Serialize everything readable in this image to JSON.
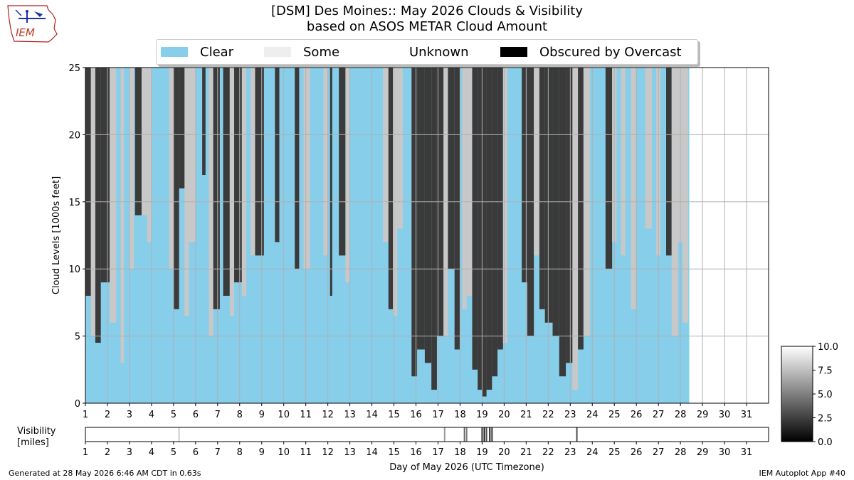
{
  "header": {
    "title_line1": "[DSM] Des Moines:: May 2026 Clouds & Visibility",
    "title_line2": "based on ASOS METAR Cloud Amount"
  },
  "logo": {
    "text": "IEM",
    "icon": "iem-iowa-weather-logo-icon"
  },
  "legend": [
    {
      "label": "Clear",
      "color": "#87ceeb"
    },
    {
      "label": "Some",
      "color": "#eeeeee"
    },
    {
      "label": "Unknown",
      "color": "#ffffff"
    },
    {
      "label": "Obscured by Overcast",
      "color": "#000000"
    }
  ],
  "colors": {
    "clear": "#87ceeb",
    "few": "#c8c8c8",
    "overcast": "#3a3a3a",
    "grid": "#b0b0b0"
  },
  "colorbar": {
    "ticks": [
      "10.0",
      "7.5",
      "5.0",
      "2.5",
      "0.0"
    ],
    "range": [
      0,
      10
    ]
  },
  "chart_data": [
    {
      "type": "heatmap",
      "title": "[DSM] Des Moines:: May 2026 Clouds & Visibility",
      "ylabel": "Cloud Levels [1000s feet]",
      "xlabel": "",
      "xlim": [
        1,
        32
      ],
      "ylim": [
        0,
        25
      ],
      "x_ticks": [
        "1",
        "2",
        "3",
        "4",
        "5",
        "6",
        "7",
        "8",
        "9",
        "10",
        "11",
        "12",
        "13",
        "14",
        "15",
        "16",
        "17",
        "18",
        "19",
        "20",
        "21",
        "22",
        "23",
        "24",
        "25",
        "26",
        "27",
        "28",
        "29",
        "30",
        "31"
      ],
      "y_ticks": [
        "0",
        "5",
        "10",
        "15",
        "20",
        "25"
      ],
      "grid": true,
      "data_end_day": 28.4,
      "cloud_segments": [
        {
          "x0": 1.0,
          "x1": 1.25,
          "base": 8,
          "cover": "overcast"
        },
        {
          "x0": 1.25,
          "x1": 1.45,
          "base": 5,
          "cover": "few"
        },
        {
          "x0": 1.45,
          "x1": 1.7,
          "base": 4.5,
          "cover": "overcast"
        },
        {
          "x0": 1.7,
          "x1": 2.1,
          "base": 9,
          "cover": "overcast"
        },
        {
          "x0": 2.1,
          "x1": 2.4,
          "base": 6,
          "cover": "few"
        },
        {
          "x0": 2.6,
          "x1": 2.75,
          "base": 3,
          "cover": "few"
        },
        {
          "x0": 3.0,
          "x1": 3.2,
          "base": 10,
          "cover": "few"
        },
        {
          "x0": 3.25,
          "x1": 3.55,
          "base": 14,
          "cover": "overcast"
        },
        {
          "x0": 3.55,
          "x1": 3.8,
          "base": 14,
          "cover": "few"
        },
        {
          "x0": 3.8,
          "x1": 4.0,
          "base": 12,
          "cover": "few"
        },
        {
          "x0": 4.8,
          "x1": 5.0,
          "base": 10,
          "cover": "few"
        },
        {
          "x0": 5.0,
          "x1": 5.25,
          "base": 7,
          "cover": "overcast"
        },
        {
          "x0": 5.25,
          "x1": 5.5,
          "base": 16,
          "cover": "overcast"
        },
        {
          "x0": 5.5,
          "x1": 5.7,
          "base": 6.5,
          "cover": "few"
        },
        {
          "x0": 5.7,
          "x1": 6.0,
          "base": 12,
          "cover": "few"
        },
        {
          "x0": 6.3,
          "x1": 6.45,
          "base": 17,
          "cover": "overcast"
        },
        {
          "x0": 6.6,
          "x1": 6.8,
          "base": 5,
          "cover": "few"
        },
        {
          "x0": 6.8,
          "x1": 7.1,
          "base": 7,
          "cover": "overcast"
        },
        {
          "x0": 7.25,
          "x1": 7.55,
          "base": 8,
          "cover": "overcast"
        },
        {
          "x0": 7.55,
          "x1": 7.75,
          "base": 6.5,
          "cover": "few"
        },
        {
          "x0": 7.75,
          "x1": 8.1,
          "base": 9,
          "cover": "overcast"
        },
        {
          "x0": 8.1,
          "x1": 8.3,
          "base": 8,
          "cover": "few"
        },
        {
          "x0": 8.5,
          "x1": 8.7,
          "base": 11,
          "cover": "few"
        },
        {
          "x0": 8.7,
          "x1": 9.1,
          "base": 11,
          "cover": "overcast"
        },
        {
          "x0": 9.6,
          "x1": 9.8,
          "base": 12,
          "cover": "overcast"
        },
        {
          "x0": 10.5,
          "x1": 10.7,
          "base": 10,
          "cover": "overcast"
        },
        {
          "x0": 10.9,
          "x1": 11.2,
          "base": 10,
          "cover": "few"
        },
        {
          "x0": 11.8,
          "x1": 12.0,
          "base": 11,
          "cover": "few"
        },
        {
          "x0": 12.1,
          "x1": 12.2,
          "base": 8,
          "cover": "overcast"
        },
        {
          "x0": 12.5,
          "x1": 12.8,
          "base": 11,
          "cover": "overcast"
        },
        {
          "x0": 12.8,
          "x1": 13.0,
          "base": 9,
          "cover": "few"
        },
        {
          "x0": 14.5,
          "x1": 14.75,
          "base": 12,
          "cover": "few"
        },
        {
          "x0": 14.75,
          "x1": 14.95,
          "base": 7,
          "cover": "overcast"
        },
        {
          "x0": 14.95,
          "x1": 15.15,
          "base": 6.5,
          "cover": "few"
        },
        {
          "x0": 15.15,
          "x1": 15.4,
          "base": 13,
          "cover": "few"
        },
        {
          "x0": 15.8,
          "x1": 16.05,
          "base": 2,
          "cover": "overcast"
        },
        {
          "x0": 16.05,
          "x1": 16.4,
          "base": 4,
          "cover": "overcast"
        },
        {
          "x0": 16.4,
          "x1": 16.7,
          "base": 3,
          "cover": "overcast"
        },
        {
          "x0": 16.7,
          "x1": 16.95,
          "base": 1,
          "cover": "overcast"
        },
        {
          "x0": 16.95,
          "x1": 17.25,
          "base": 5,
          "cover": "overcast"
        },
        {
          "x0": 17.25,
          "x1": 17.45,
          "base": 5,
          "cover": "few"
        },
        {
          "x0": 17.45,
          "x1": 17.75,
          "base": 10,
          "cover": "overcast"
        },
        {
          "x0": 17.75,
          "x1": 18.0,
          "base": 4,
          "cover": "overcast"
        },
        {
          "x0": 18.1,
          "x1": 18.3,
          "base": 7,
          "cover": "few"
        },
        {
          "x0": 18.3,
          "x1": 18.55,
          "base": 8,
          "cover": "few"
        },
        {
          "x0": 18.55,
          "x1": 18.8,
          "base": 2.5,
          "cover": "overcast"
        },
        {
          "x0": 18.8,
          "x1": 19.0,
          "base": 1,
          "cover": "overcast"
        },
        {
          "x0": 19.0,
          "x1": 19.2,
          "base": 0.5,
          "cover": "overcast"
        },
        {
          "x0": 19.2,
          "x1": 19.45,
          "base": 1,
          "cover": "overcast"
        },
        {
          "x0": 19.45,
          "x1": 19.7,
          "base": 2,
          "cover": "overcast"
        },
        {
          "x0": 19.7,
          "x1": 19.95,
          "base": 4,
          "cover": "overcast"
        },
        {
          "x0": 19.95,
          "x1": 20.15,
          "base": 4.5,
          "cover": "few"
        },
        {
          "x0": 20.8,
          "x1": 21.05,
          "base": 9,
          "cover": "overcast"
        },
        {
          "x0": 21.05,
          "x1": 21.35,
          "base": 5,
          "cover": "overcast"
        },
        {
          "x0": 21.35,
          "x1": 21.6,
          "base": 11,
          "cover": "few"
        },
        {
          "x0": 21.6,
          "x1": 21.85,
          "base": 7,
          "cover": "overcast"
        },
        {
          "x0": 21.85,
          "x1": 22.2,
          "base": 6,
          "cover": "overcast"
        },
        {
          "x0": 22.2,
          "x1": 22.5,
          "base": 5,
          "cover": "overcast"
        },
        {
          "x0": 22.5,
          "x1": 22.8,
          "base": 2,
          "cover": "overcast"
        },
        {
          "x0": 22.8,
          "x1": 23.1,
          "base": 3,
          "cover": "overcast"
        },
        {
          "x0": 23.1,
          "x1": 23.35,
          "base": 1,
          "cover": "few"
        },
        {
          "x0": 23.35,
          "x1": 23.6,
          "base": 4,
          "cover": "overcast"
        },
        {
          "x0": 23.6,
          "x1": 23.9,
          "base": 5,
          "cover": "few"
        },
        {
          "x0": 24.6,
          "x1": 24.9,
          "base": 10,
          "cover": "overcast"
        },
        {
          "x0": 24.9,
          "x1": 25.1,
          "base": 12,
          "cover": "few"
        },
        {
          "x0": 25.3,
          "x1": 25.5,
          "base": 11,
          "cover": "few"
        },
        {
          "x0": 25.75,
          "x1": 26.0,
          "base": 7,
          "cover": "few"
        },
        {
          "x0": 26.4,
          "x1": 26.7,
          "base": 13,
          "cover": "few"
        },
        {
          "x0": 26.9,
          "x1": 27.1,
          "base": 11,
          "cover": "few"
        },
        {
          "x0": 27.35,
          "x1": 27.6,
          "base": 11,
          "cover": "overcast"
        },
        {
          "x0": 27.6,
          "x1": 27.9,
          "base": 5,
          "cover": "few"
        },
        {
          "x0": 27.9,
          "x1": 28.1,
          "base": 12,
          "cover": "few"
        },
        {
          "x0": 28.1,
          "x1": 28.35,
          "base": 6,
          "cover": "few"
        }
      ]
    },
    {
      "type": "heatmap",
      "title": "",
      "ylabel": "Visibility\n[miles]",
      "xlabel": "Day of May 2026 (UTC Timezone)",
      "xlim": [
        1,
        32
      ],
      "x_ticks": [
        "1",
        "2",
        "3",
        "4",
        "5",
        "6",
        "7",
        "8",
        "9",
        "10",
        "11",
        "12",
        "13",
        "14",
        "15",
        "16",
        "17",
        "18",
        "19",
        "20",
        "21",
        "22",
        "23",
        "24",
        "25",
        "26",
        "27",
        "28",
        "29",
        "30",
        "31"
      ],
      "baseline_visibility": 10,
      "visibility_events": [
        {
          "day": 5.25,
          "value": 8
        },
        {
          "day": 17.3,
          "value": 6
        },
        {
          "day": 18.2,
          "value": 4
        },
        {
          "day": 18.3,
          "value": 5
        },
        {
          "day": 19.0,
          "value": 2
        },
        {
          "day": 19.1,
          "value": 1
        },
        {
          "day": 19.2,
          "value": 3
        },
        {
          "day": 19.35,
          "value": 1
        },
        {
          "day": 19.45,
          "value": 2
        },
        {
          "day": 23.3,
          "value": 3
        }
      ]
    }
  ],
  "footer": {
    "left": "Generated at 28 May 2026 6:46 AM CDT in 0.63s",
    "right": "IEM Autoplot App #40"
  }
}
